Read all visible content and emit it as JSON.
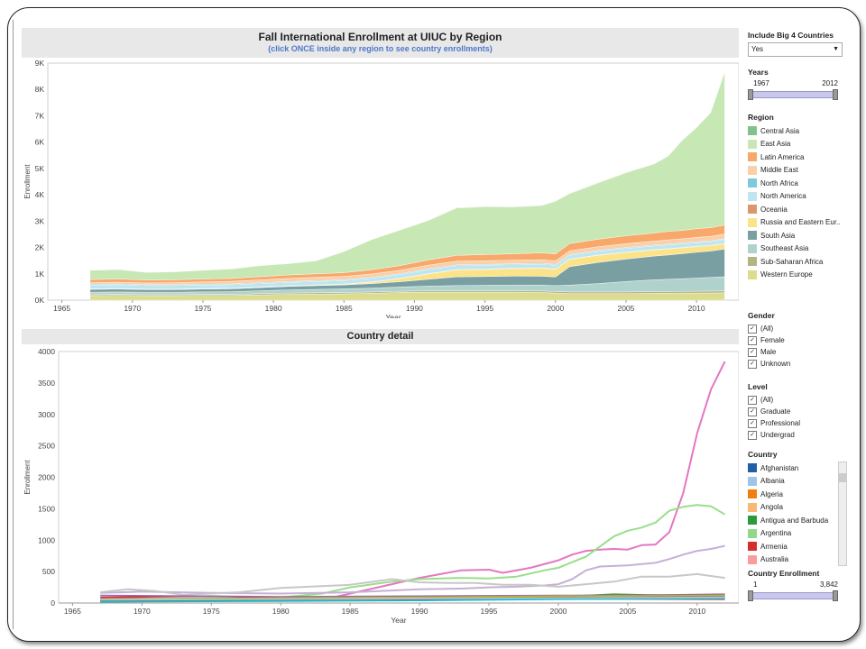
{
  "colors": {
    "Central Asia": "#7ec38a",
    "East Asia": "#c7e7b4",
    "Latin America": "#f7a86a",
    "Middle East": "#fbcfa9",
    "North Africa": "#7ccadb",
    "North America": "#bfe6ee",
    "Oceania": "#d9976b",
    "Russia and Eastern Eur..": "#fbe38a",
    "South Asia": "#7a9fa2",
    "Southeast Asia": "#b0d2cd",
    "Sub-Saharan Africa": "#b3b383",
    "Western Europe": "#dcdc8e"
  },
  "top": {
    "title": "Fall International Enrollment at UIUC by Region",
    "subtitle": "(click ONCE inside any region to see country enrollments)"
  },
  "bottom": {
    "title": "Country detail"
  },
  "sidebar": {
    "big4_label": "Include Big 4 Countries",
    "big4_value": "Yes",
    "years_label": "Years",
    "years_min": "1967",
    "years_max": "2012",
    "region_label": "Region",
    "regions": [
      "Central Asia",
      "East Asia",
      "Latin America",
      "Middle East",
      "North Africa",
      "North America",
      "Oceania",
      "Russia and Eastern Eur..",
      "South Asia",
      "Southeast Asia",
      "Sub-Saharan Africa",
      "Western Europe"
    ],
    "gender_label": "Gender",
    "genders": [
      "(All)",
      "Female",
      "Male",
      "Unknown"
    ],
    "level_label": "Level",
    "levels": [
      "(All)",
      "Graduate",
      "Professional",
      "Undergrad"
    ],
    "country_label": "Country",
    "countries": [
      {
        "name": "Afghanistan",
        "color": "#1f5fa8"
      },
      {
        "name": "Albania",
        "color": "#9fc4e6"
      },
      {
        "name": "Algeria",
        "color": "#f07f12"
      },
      {
        "name": "Angola",
        "color": "#fbb872"
      },
      {
        "name": "Antigua and Barbuda",
        "color": "#2a9a3b"
      },
      {
        "name": "Argentina",
        "color": "#93d888"
      },
      {
        "name": "Armenia",
        "color": "#d62d2d"
      },
      {
        "name": "Australia",
        "color": "#fb9c9c"
      }
    ],
    "enroll_label": "Country Enrollment",
    "enroll_min": "1",
    "enroll_max": "3,842"
  },
  "chart_data": [
    {
      "type": "area",
      "stacked": true,
      "title": "Fall International Enrollment at UIUC by Region",
      "subtitle": "(click ONCE inside any region to see country enrollments)",
      "xlabel": "Year",
      "ylabel": "Enrollment",
      "xlim": [
        1964,
        2013
      ],
      "ylim": [
        0,
        9000
      ],
      "xticks": [
        1965,
        1970,
        1975,
        1980,
        1985,
        1990,
        1995,
        2000,
        2005,
        2010
      ],
      "yticks": [
        0,
        1000,
        2000,
        3000,
        4000,
        5000,
        6000,
        7000,
        8000,
        9000
      ],
      "ytick_labels": [
        "0K",
        "1K",
        "2K",
        "3K",
        "4K",
        "5K",
        "6K",
        "7K",
        "8K",
        "9K"
      ],
      "x": [
        1967,
        1969,
        1971,
        1973,
        1975,
        1977,
        1979,
        1981,
        1983,
        1985,
        1987,
        1989,
        1991,
        1993,
        1995,
        1997,
        1999,
        2000,
        2001,
        2003,
        2005,
        2007,
        2008,
        2009,
        2010,
        2011,
        2012
      ],
      "series": [
        {
          "name": "Western Europe",
          "values": [
            170,
            180,
            170,
            170,
            180,
            180,
            200,
            220,
            230,
            240,
            260,
            290,
            300,
            300,
            300,
            300,
            290,
            270,
            250,
            250,
            250,
            260,
            260,
            270,
            270,
            275,
            280
          ]
        },
        {
          "name": "Sub-Saharan Africa",
          "values": [
            40,
            40,
            40,
            40,
            40,
            40,
            45,
            50,
            50,
            50,
            50,
            50,
            55,
            55,
            55,
            55,
            60,
            60,
            60,
            60,
            60,
            65,
            65,
            65,
            70,
            70,
            70
          ]
        },
        {
          "name": "Southeast Asia",
          "values": [
            90,
            90,
            90,
            90,
            95,
            100,
            110,
            120,
            130,
            140,
            150,
            160,
            180,
            200,
            210,
            220,
            220,
            220,
            260,
            320,
            400,
            450,
            470,
            480,
            500,
            520,
            540
          ]
        },
        {
          "name": "South Asia",
          "values": [
            110,
            110,
            100,
            100,
            105,
            110,
            120,
            130,
            140,
            150,
            170,
            200,
            260,
            330,
            330,
            340,
            340,
            330,
            700,
            800,
            850,
            900,
            920,
            950,
            980,
            1000,
            1050
          ]
        },
        {
          "name": "Russia and Eastern Eur..",
          "values": [
            10,
            10,
            10,
            10,
            10,
            10,
            10,
            10,
            15,
            20,
            50,
            120,
            200,
            260,
            270,
            280,
            300,
            290,
            280,
            270,
            250,
            230,
            230,
            220,
            210,
            200,
            200
          ]
        },
        {
          "name": "Oceania",
          "values": [
            15,
            15,
            15,
            15,
            15,
            15,
            15,
            15,
            15,
            15,
            15,
            15,
            15,
            15,
            15,
            15,
            15,
            15,
            15,
            15,
            15,
            15,
            15,
            15,
            15,
            15,
            15
          ]
        },
        {
          "name": "North America",
          "values": [
            140,
            140,
            130,
            130,
            130,
            130,
            130,
            130,
            130,
            130,
            140,
            140,
            150,
            150,
            150,
            140,
            140,
            140,
            140,
            140,
            140,
            140,
            140,
            140,
            140,
            140,
            150
          ]
        },
        {
          "name": "North Africa",
          "values": [
            30,
            30,
            30,
            30,
            30,
            30,
            30,
            30,
            30,
            30,
            30,
            30,
            30,
            30,
            30,
            30,
            30,
            30,
            30,
            30,
            30,
            30,
            30,
            30,
            30,
            30,
            30
          ]
        },
        {
          "name": "Middle East",
          "values": [
            60,
            70,
            70,
            80,
            90,
            100,
            110,
            120,
            130,
            130,
            130,
            130,
            140,
            140,
            140,
            140,
            140,
            140,
            140,
            140,
            150,
            150,
            160,
            160,
            170,
            170,
            180
          ]
        },
        {
          "name": "Latin America",
          "values": [
            120,
            120,
            110,
            110,
            110,
            110,
            120,
            130,
            130,
            140,
            160,
            180,
            200,
            220,
            230,
            240,
            260,
            260,
            270,
            290,
            300,
            310,
            320,
            320,
            330,
            330,
            340
          ]
        },
        {
          "name": "East Asia",
          "values": [
            350,
            360,
            290,
            300,
            330,
            360,
            420,
            430,
            490,
            800,
            1150,
            1350,
            1500,
            1800,
            1820,
            1780,
            1790,
            2000,
            1900,
            2130,
            2390,
            2620,
            2860,
            3420,
            3830,
            4360,
            5820
          ]
        },
        {
          "name": "Central Asia",
          "values": [
            5,
            5,
            5,
            5,
            5,
            5,
            5,
            5,
            5,
            5,
            5,
            5,
            5,
            10,
            10,
            10,
            10,
            10,
            10,
            10,
            10,
            10,
            10,
            10,
            10,
            10,
            10
          ]
        }
      ]
    },
    {
      "type": "line",
      "title": "Country detail",
      "xlabel": "Year",
      "ylabel": "Enrollment",
      "xlim": [
        1964,
        2013
      ],
      "ylim": [
        0,
        4000
      ],
      "xticks": [
        1965,
        1970,
        1975,
        1980,
        1985,
        1990,
        1995,
        2000,
        2005,
        2010
      ],
      "yticks": [
        0,
        500,
        1000,
        1500,
        2000,
        2500,
        3000,
        3500,
        4000
      ],
      "series": [
        {
          "color": "#e377c2",
          "x": [
            1967,
            1970,
            1975,
            1980,
            1984,
            1987,
            1990,
            1993,
            1995,
            1996,
            1998,
            2000,
            2001,
            2002,
            2003,
            2004,
            2005,
            2006,
            2007,
            2008,
            2009,
            2010,
            2011,
            2012
          ],
          "values": [
            80,
            70,
            60,
            70,
            100,
            250,
            400,
            520,
            530,
            480,
            560,
            680,
            770,
            830,
            850,
            860,
            850,
            920,
            930,
            1130,
            1750,
            2700,
            3400,
            3842
          ]
        },
        {
          "color": "#98df8a",
          "x": [
            1967,
            1970,
            1975,
            1980,
            1983,
            1985,
            1988,
            1990,
            1993,
            1995,
            1997,
            1999,
            2000,
            2002,
            2004,
            2005,
            2006,
            2007,
            2008,
            2009,
            2010,
            2011,
            2012
          ],
          "values": [
            60,
            60,
            80,
            90,
            150,
            250,
            340,
            380,
            400,
            390,
            420,
            520,
            560,
            740,
            1060,
            1150,
            1200,
            1280,
            1470,
            1530,
            1560,
            1540,
            1410
          ]
        },
        {
          "color": "#c5b0d5",
          "x": [
            1967,
            1970,
            1975,
            1980,
            1985,
            1988,
            1990,
            1993,
            1995,
            1997,
            1999,
            2000,
            2001,
            2002,
            2003,
            2005,
            2007,
            2008,
            2009,
            2010,
            2011,
            2012
          ],
          "values": [
            160,
            180,
            160,
            150,
            170,
            200,
            220,
            230,
            250,
            260,
            280,
            300,
            380,
            520,
            580,
            600,
            640,
            700,
            770,
            830,
            860,
            910
          ]
        },
        {
          "color": "#c7c7c7",
          "x": [
            1967,
            1969,
            1971,
            1973,
            1975,
            1977,
            1980,
            1985,
            1988,
            1990,
            1992,
            1994,
            1996,
            1998,
            2000,
            2002,
            2004,
            2006,
            2008,
            2010,
            2012
          ],
          "values": [
            170,
            220,
            190,
            130,
            150,
            170,
            240,
            290,
            380,
            330,
            320,
            320,
            290,
            290,
            260,
            300,
            340,
            420,
            420,
            460,
            400
          ]
        },
        {
          "color": "#1f77b4",
          "x": [
            1967,
            1980,
            1990,
            2000,
            2012
          ],
          "values": [
            20,
            40,
            60,
            80,
            100
          ]
        },
        {
          "color": "#ff7f0e",
          "x": [
            1967,
            1980,
            1990,
            2000,
            2012
          ],
          "values": [
            30,
            40,
            60,
            90,
            80
          ]
        },
        {
          "color": "#2ca02c",
          "x": [
            1967,
            1980,
            1990,
            2000,
            2004,
            2008,
            2012
          ],
          "values": [
            40,
            60,
            80,
            100,
            140,
            120,
            110
          ]
        },
        {
          "color": "#d62728",
          "x": [
            1967,
            1975,
            1980,
            1990,
            2000,
            2012
          ],
          "values": [
            90,
            110,
            80,
            60,
            70,
            60
          ]
        },
        {
          "color": "#9467bd",
          "x": [
            1967,
            1980,
            1990,
            2000,
            2008,
            2012
          ],
          "values": [
            120,
            100,
            110,
            120,
            130,
            140
          ]
        },
        {
          "color": "#8c564b",
          "x": [
            1967,
            1980,
            1990,
            2000,
            2012
          ],
          "values": [
            30,
            50,
            70,
            90,
            100
          ]
        },
        {
          "color": "#bcbd22",
          "x": [
            1967,
            1980,
            1990,
            2000,
            2012
          ],
          "values": [
            60,
            80,
            90,
            110,
            120
          ]
        },
        {
          "color": "#17becf",
          "x": [
            1967,
            1980,
            1990,
            2000,
            2012
          ],
          "values": [
            20,
            30,
            40,
            60,
            70
          ]
        },
        {
          "color": "#aec7e8",
          "x": [
            1967,
            1980,
            1990,
            2000,
            2012
          ],
          "values": [
            50,
            60,
            70,
            80,
            90
          ]
        }
      ]
    }
  ]
}
